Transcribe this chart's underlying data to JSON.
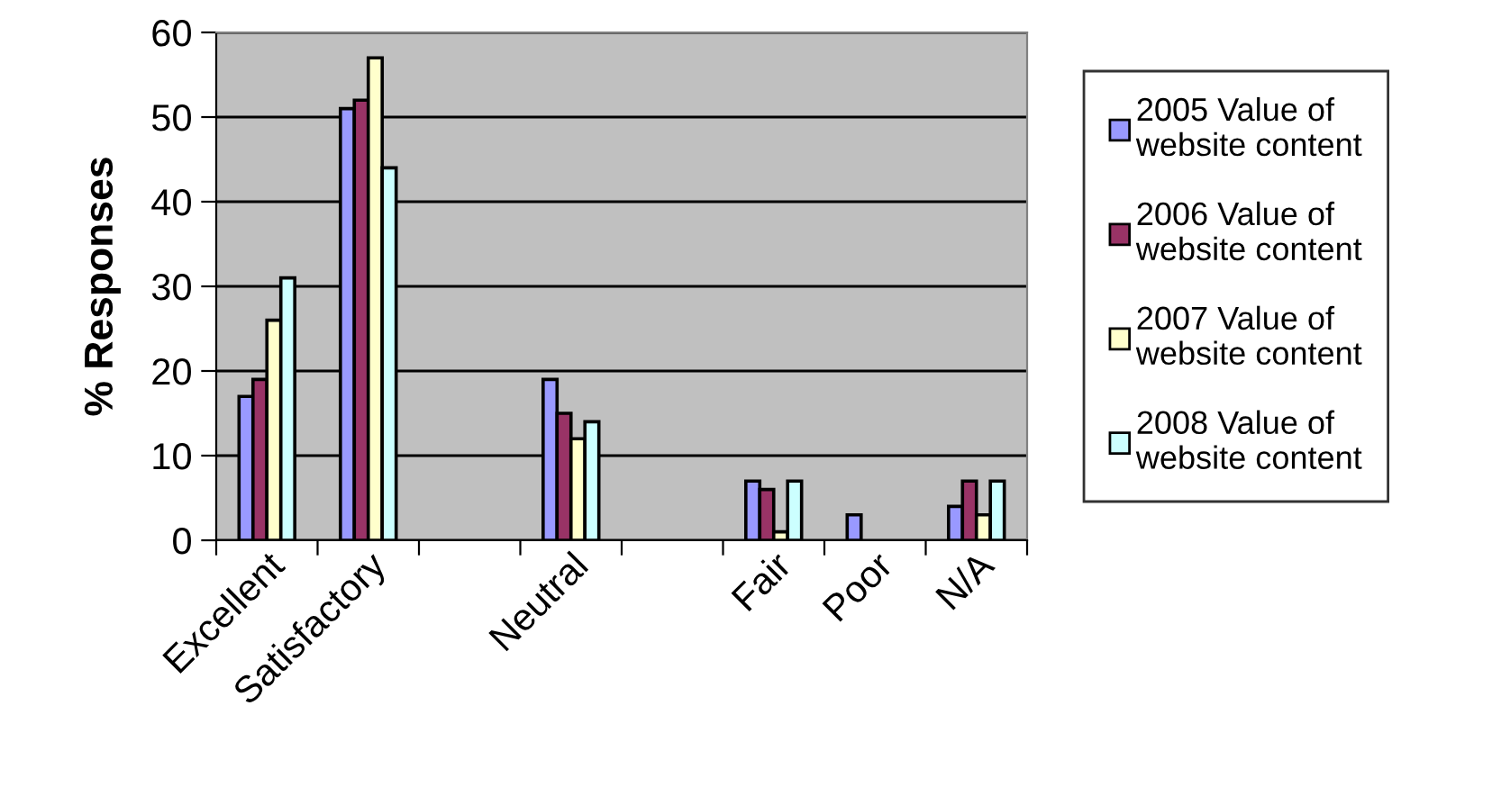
{
  "chart_data": {
    "type": "bar",
    "ylabel": "% Responses",
    "categories": [
      "Excellent",
      "Satisfactory",
      null,
      "Neutral",
      null,
      "Fair",
      "Poor",
      "N/A"
    ],
    "series": [
      {
        "name": "2005 Value of\nwebsite content",
        "color": "#9999ff",
        "values": [
          17,
          51,
          null,
          19,
          null,
          7,
          3,
          4
        ]
      },
      {
        "name": "2006 Value of\nwebsite content",
        "color": "#993366",
        "values": [
          19,
          52,
          null,
          15,
          null,
          6,
          null,
          7
        ]
      },
      {
        "name": "2007 Value of\nwebsite content",
        "color": "#ffffcc",
        "values": [
          26,
          57,
          null,
          12,
          null,
          1,
          null,
          3
        ]
      },
      {
        "name": "2008 Value of\nwebsite content",
        "color": "#ccffff",
        "values": [
          31,
          44,
          null,
          14,
          null,
          7,
          null,
          7
        ]
      }
    ],
    "ylim": [
      0,
      60
    ],
    "yticks": [
      0,
      10,
      20,
      30,
      40,
      50,
      60
    ],
    "grid": "y",
    "legend": "right"
  }
}
